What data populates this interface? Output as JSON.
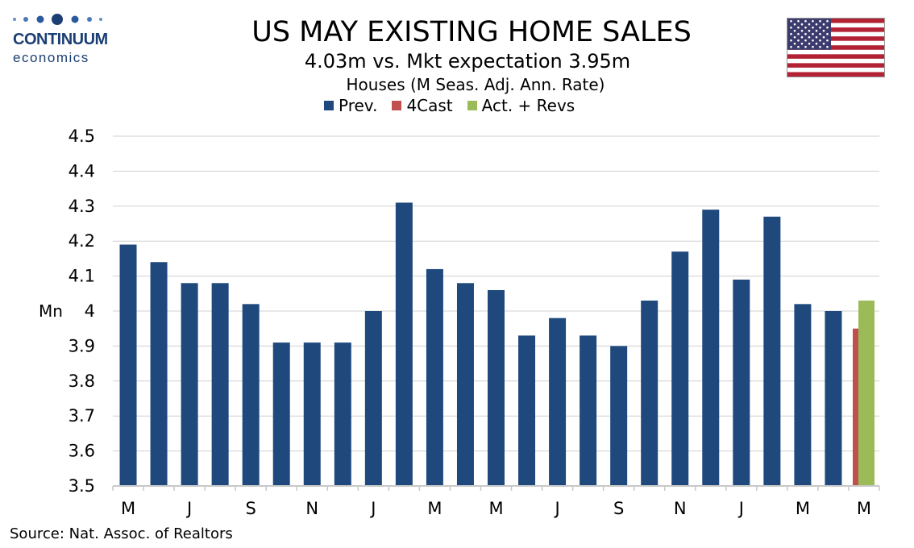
{
  "logo": {
    "name": "CONTINUUM",
    "tagline": "economics"
  },
  "header": {
    "title": "US MAY EXISTING HOME SALES",
    "subtitle": "4.03m vs. Mkt expectation 3.95m",
    "subsubtitle": "Houses (M Seas. Adj. Ann. Rate)"
  },
  "flag_icon": "us-flag-icon",
  "colors": {
    "prev": "#1f497d",
    "forecast": "#c0504d",
    "actual": "#9bbb59",
    "grid": "#d0d0d0"
  },
  "source": "Source: Nat. Assoc. of Realtors",
  "chart_data": {
    "type": "bar",
    "ylabel": "Mn",
    "ylim": [
      3.5,
      4.5
    ],
    "yticks": [
      "3.5",
      "3.6",
      "3.7",
      "3.8",
      "3.9",
      "4",
      "4.1",
      "4.2",
      "4.3",
      "4.4",
      "4.5"
    ],
    "grid": true,
    "legend_position": "top",
    "legend": [
      "Prev.",
      "4Cast",
      "Act. + Revs"
    ],
    "x_tick_labels": [
      "M",
      "J",
      "S",
      "N",
      "J",
      "M",
      "M",
      "J",
      "S",
      "N",
      "J",
      "M",
      "M"
    ],
    "series": [
      {
        "name": "Prev.",
        "values": [
          4.19,
          4.14,
          4.08,
          4.08,
          4.02,
          3.91,
          3.91,
          3.91,
          4.0,
          4.31,
          4.12,
          4.08,
          4.06,
          3.93,
          3.98,
          3.93,
          3.9,
          4.03,
          4.17,
          4.29,
          4.09,
          4.27,
          4.02,
          4.0,
          null
        ]
      },
      {
        "name": "4Cast",
        "values": [
          null,
          null,
          null,
          null,
          null,
          null,
          null,
          null,
          null,
          null,
          null,
          null,
          null,
          null,
          null,
          null,
          null,
          null,
          null,
          null,
          null,
          null,
          null,
          null,
          3.95
        ]
      },
      {
        "name": "Act. + Revs",
        "values": [
          null,
          null,
          null,
          null,
          null,
          null,
          null,
          null,
          null,
          null,
          null,
          null,
          null,
          null,
          null,
          null,
          null,
          null,
          null,
          null,
          null,
          null,
          null,
          null,
          4.03
        ]
      }
    ]
  }
}
